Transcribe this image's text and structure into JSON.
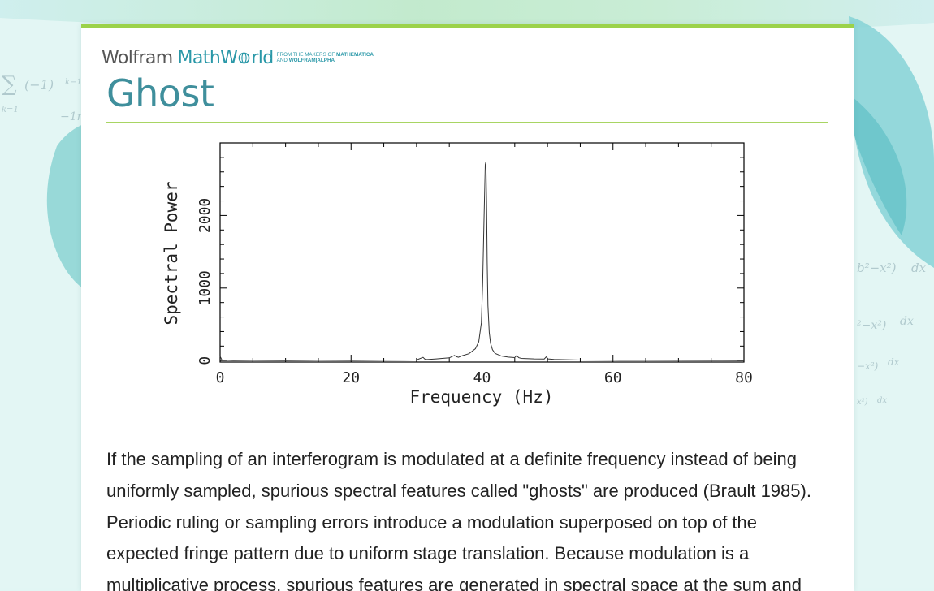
{
  "brand": {
    "wolfram": "Wolfram",
    "mathworld": "MathW",
    "mathworld_end": "rld",
    "tagline_1": "FROM THE MAKERS OF ",
    "tagline_1_bold": "MATHEMATICA",
    "tagline_2": "AND ",
    "tagline_2_bold": "WOLFRAM|ALPHA"
  },
  "page_title": "Ghost",
  "chart_data": {
    "type": "line",
    "xlabel": "Frequency (Hz)",
    "ylabel": "Spectral Power",
    "xlim": [
      0,
      80
    ],
    "ylim": [
      -20,
      3000
    ],
    "x_ticks": [
      0,
      20,
      40,
      60,
      80
    ],
    "x_tick_labels": [
      "0",
      "20",
      "40",
      "60",
      "80"
    ],
    "y_ticks": [
      0,
      1000,
      2000
    ],
    "y_tick_labels": [
      "0",
      "1000",
      "2000"
    ],
    "grid": false,
    "series": [
      {
        "x": [
          0,
          0.3,
          2,
          5,
          10,
          15,
          20,
          25,
          28,
          30,
          31,
          31.3,
          31.6,
          33,
          35,
          35.8,
          36.1,
          36.4,
          37,
          38,
          39,
          39.5,
          39.9,
          40.1,
          40.3,
          40.5,
          40.6,
          40.7,
          40.8,
          40.9,
          41.1,
          41.3,
          41.6,
          42,
          43,
          44,
          45,
          45.3,
          45.6,
          46,
          48,
          49.5,
          49.8,
          50.1,
          51,
          55,
          60,
          65,
          70,
          75,
          80
        ],
        "y": [
          60,
          5,
          0,
          2,
          -1,
          3,
          1,
          5,
          7,
          9,
          45,
          18,
          15,
          24,
          38,
          72,
          54,
          46,
          68,
          95,
          165,
          260,
          520,
          1060,
          1900,
          2700,
          2740,
          2200,
          1350,
          760,
          390,
          240,
          150,
          100,
          62,
          48,
          42,
          70,
          40,
          30,
          24,
          22,
          52,
          24,
          16,
          8,
          5,
          3,
          2,
          1,
          0
        ]
      }
    ]
  },
  "body": {
    "paragraph": "If the sampling of an interferogram is modulated at a definite frequency instead of being uniformly sampled, spurious spectral features called \"ghosts\" are produced (Brault 1985). Periodic ruling or sampling errors introduce a modulation superposed on top of the expected fringe pattern due to uniform stage translation. Because modulation is a multiplicative process, spurious features are generated in spectral space at the sum and"
  }
}
